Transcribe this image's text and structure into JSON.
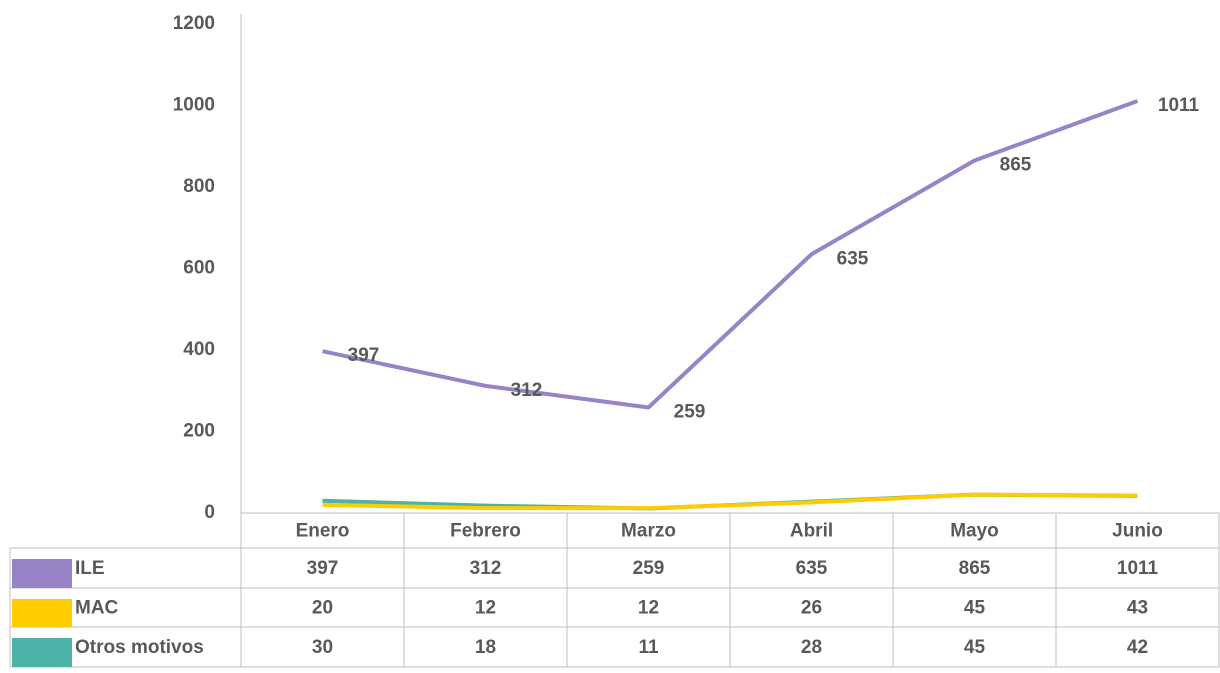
{
  "chart_data": {
    "type": "line",
    "categories": [
      "Enero",
      "Febrero",
      "Marzo",
      "Abril",
      "Mayo",
      "Junio"
    ],
    "series": [
      {
        "name": "ILE",
        "color": "#9784c6",
        "values": [
          397,
          312,
          259,
          635,
          865,
          1011
        ],
        "data_labels": true
      },
      {
        "name": "MAC",
        "color": "#ffcc00",
        "values": [
          20,
          12,
          12,
          26,
          45,
          43
        ],
        "data_labels": false
      },
      {
        "name": "Otros motivos",
        "color": "#4db3a6",
        "values": [
          30,
          18,
          11,
          28,
          45,
          42
        ],
        "data_labels": false
      }
    ],
    "ylim": [
      0,
      1200
    ],
    "yticks": [
      0,
      200,
      400,
      600,
      800,
      1000,
      1200
    ],
    "grid": false,
    "data_table": true
  }
}
